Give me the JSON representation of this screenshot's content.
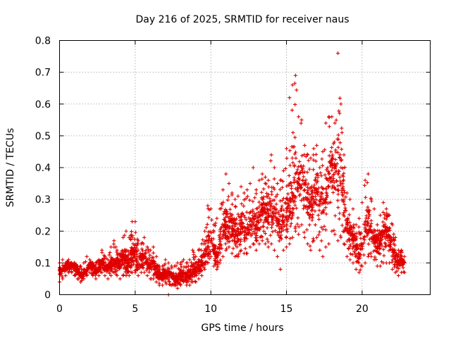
{
  "chart_data": {
    "type": "scatter",
    "title": "Day 216 of 2025, SRMTID for receiver naus",
    "xlabel": "GPS time / hours",
    "ylabel": "SRMTID / TECUs",
    "xlim": [
      0,
      24.5
    ],
    "ylim": [
      0,
      0.8
    ],
    "xticks": [
      0,
      5,
      10,
      15,
      20
    ],
    "xtick_labels": [
      "0",
      "5",
      "10",
      "15",
      "20"
    ],
    "yticks": [
      0,
      0.1,
      0.2,
      0.3,
      0.4,
      0.5,
      0.6,
      0.7,
      0.8
    ],
    "ytick_labels": [
      "0",
      "0.1",
      "0.2",
      "0.3",
      "0.4",
      "0.5",
      "0.6",
      "0.7",
      "0.8"
    ],
    "grid": true,
    "marker": "plus",
    "color": "#e00000",
    "series": [
      {
        "name": "SRMTID",
        "x": [
          0.0,
          0.2,
          0.4,
          0.6,
          0.8,
          1.0,
          1.2,
          1.4,
          1.6,
          1.8,
          2.0,
          2.2,
          2.4,
          2.6,
          2.8,
          3.0,
          3.2,
          3.4,
          3.6,
          3.8,
          4.0,
          4.2,
          4.4,
          4.6,
          4.8,
          5.0,
          5.2,
          5.4,
          5.6,
          5.8,
          6.0,
          6.2,
          6.4,
          6.6,
          6.8,
          7.0,
          7.2,
          7.4,
          7.6,
          7.8,
          8.0,
          8.2,
          8.4,
          8.6,
          8.8,
          9.0,
          9.2,
          9.4,
          9.6,
          9.8,
          10.0,
          10.2,
          10.4,
          10.6,
          10.8,
          11.0,
          11.2,
          11.4,
          11.6,
          11.8,
          12.0,
          12.2,
          12.4,
          12.6,
          12.8,
          13.0,
          13.2,
          13.4,
          13.6,
          13.8,
          14.0,
          14.2,
          14.4,
          14.6,
          14.8,
          15.0,
          15.2,
          15.4,
          15.6,
          15.8,
          16.0,
          16.2,
          16.4,
          16.6,
          16.8,
          17.0,
          17.2,
          17.4,
          17.6,
          17.8,
          18.0,
          18.2,
          18.4,
          18.6,
          18.8,
          19.0,
          19.2,
          19.4,
          19.6,
          19.8,
          20.0,
          20.2,
          20.4,
          20.6,
          20.8,
          21.0,
          21.2,
          21.4,
          21.6,
          21.8,
          22.0,
          22.2,
          22.4,
          22.6,
          22.8
        ],
        "median": [
          0.075,
          0.08,
          0.085,
          0.09,
          0.09,
          0.085,
          0.07,
          0.06,
          0.065,
          0.08,
          0.09,
          0.085,
          0.075,
          0.08,
          0.1,
          0.09,
          0.08,
          0.1,
          0.11,
          0.1,
          0.09,
          0.12,
          0.11,
          0.1,
          0.13,
          0.12,
          0.1,
          0.11,
          0.12,
          0.1,
          0.09,
          0.1,
          0.07,
          0.06,
          0.06,
          0.07,
          0.065,
          0.06,
          0.05,
          0.05,
          0.06,
          0.07,
          0.06,
          0.06,
          0.08,
          0.07,
          0.09,
          0.1,
          0.12,
          0.15,
          0.17,
          0.14,
          0.12,
          0.16,
          0.2,
          0.22,
          0.23,
          0.21,
          0.2,
          0.19,
          0.22,
          0.2,
          0.21,
          0.22,
          0.24,
          0.21,
          0.25,
          0.27,
          0.26,
          0.25,
          0.28,
          0.27,
          0.24,
          0.22,
          0.25,
          0.26,
          0.28,
          0.32,
          0.38,
          0.35,
          0.4,
          0.33,
          0.3,
          0.28,
          0.3,
          0.33,
          0.28,
          0.26,
          0.3,
          0.38,
          0.42,
          0.4,
          0.38,
          0.4,
          0.3,
          0.22,
          0.2,
          0.18,
          0.15,
          0.13,
          0.16,
          0.22,
          0.24,
          0.2,
          0.18,
          0.15,
          0.17,
          0.2,
          0.19,
          0.18,
          0.14,
          0.12,
          0.1,
          0.11,
          0.1
        ],
        "max": [
          0.1,
          0.11,
          0.1,
          0.11,
          0.1,
          0.1,
          0.09,
          0.09,
          0.1,
          0.12,
          0.11,
          0.1,
          0.1,
          0.11,
          0.14,
          0.12,
          0.11,
          0.15,
          0.17,
          0.14,
          0.13,
          0.18,
          0.2,
          0.18,
          0.23,
          0.23,
          0.17,
          0.16,
          0.18,
          0.15,
          0.14,
          0.15,
          0.12,
          0.09,
          0.09,
          0.11,
          0.1,
          0.09,
          0.09,
          0.1,
          0.1,
          0.11,
          0.1,
          0.11,
          0.14,
          0.12,
          0.14,
          0.16,
          0.2,
          0.28,
          0.27,
          0.22,
          0.24,
          0.27,
          0.33,
          0.38,
          0.35,
          0.32,
          0.3,
          0.31,
          0.34,
          0.32,
          0.33,
          0.35,
          0.4,
          0.33,
          0.36,
          0.38,
          0.37,
          0.36,
          0.44,
          0.4,
          0.35,
          0.36,
          0.39,
          0.46,
          0.62,
          0.66,
          0.69,
          0.56,
          0.55,
          0.47,
          0.44,
          0.43,
          0.46,
          0.47,
          0.4,
          0.45,
          0.54,
          0.56,
          0.56,
          0.54,
          0.76,
          0.6,
          0.44,
          0.32,
          0.3,
          0.27,
          0.22,
          0.24,
          0.29,
          0.36,
          0.38,
          0.3,
          0.27,
          0.22,
          0.25,
          0.29,
          0.27,
          0.25,
          0.22,
          0.18,
          0.14,
          0.14,
          0.12
        ],
        "min": [
          0.04,
          0.05,
          0.06,
          0.07,
          0.07,
          0.06,
          0.05,
          0.04,
          0.05,
          0.06,
          0.07,
          0.06,
          0.05,
          0.06,
          0.07,
          0.06,
          0.05,
          0.06,
          0.07,
          0.06,
          0.05,
          0.06,
          0.06,
          0.06,
          0.07,
          0.07,
          0.06,
          0.07,
          0.07,
          0.06,
          0.05,
          0.05,
          0.04,
          0.03,
          0.03,
          0.04,
          0.0,
          0.03,
          0.03,
          0.02,
          0.03,
          0.04,
          0.03,
          0.03,
          0.04,
          0.04,
          0.05,
          0.06,
          0.08,
          0.1,
          0.12,
          0.09,
          0.08,
          0.1,
          0.12,
          0.14,
          0.15,
          0.13,
          0.12,
          0.12,
          0.14,
          0.13,
          0.13,
          0.15,
          0.16,
          0.14,
          0.16,
          0.17,
          0.16,
          0.15,
          0.16,
          0.14,
          0.12,
          0.08,
          0.14,
          0.15,
          0.16,
          0.18,
          0.2,
          0.19,
          0.22,
          0.18,
          0.16,
          0.14,
          0.17,
          0.18,
          0.14,
          0.12,
          0.15,
          0.16,
          0.2,
          0.19,
          0.17,
          0.18,
          0.16,
          0.12,
          0.11,
          0.1,
          0.08,
          0.07,
          0.09,
          0.1,
          0.12,
          0.12,
          0.11,
          0.09,
          0.09,
          0.1,
          0.1,
          0.1,
          0.08,
          0.07,
          0.06,
          0.07,
          0.07
        ]
      }
    ]
  }
}
